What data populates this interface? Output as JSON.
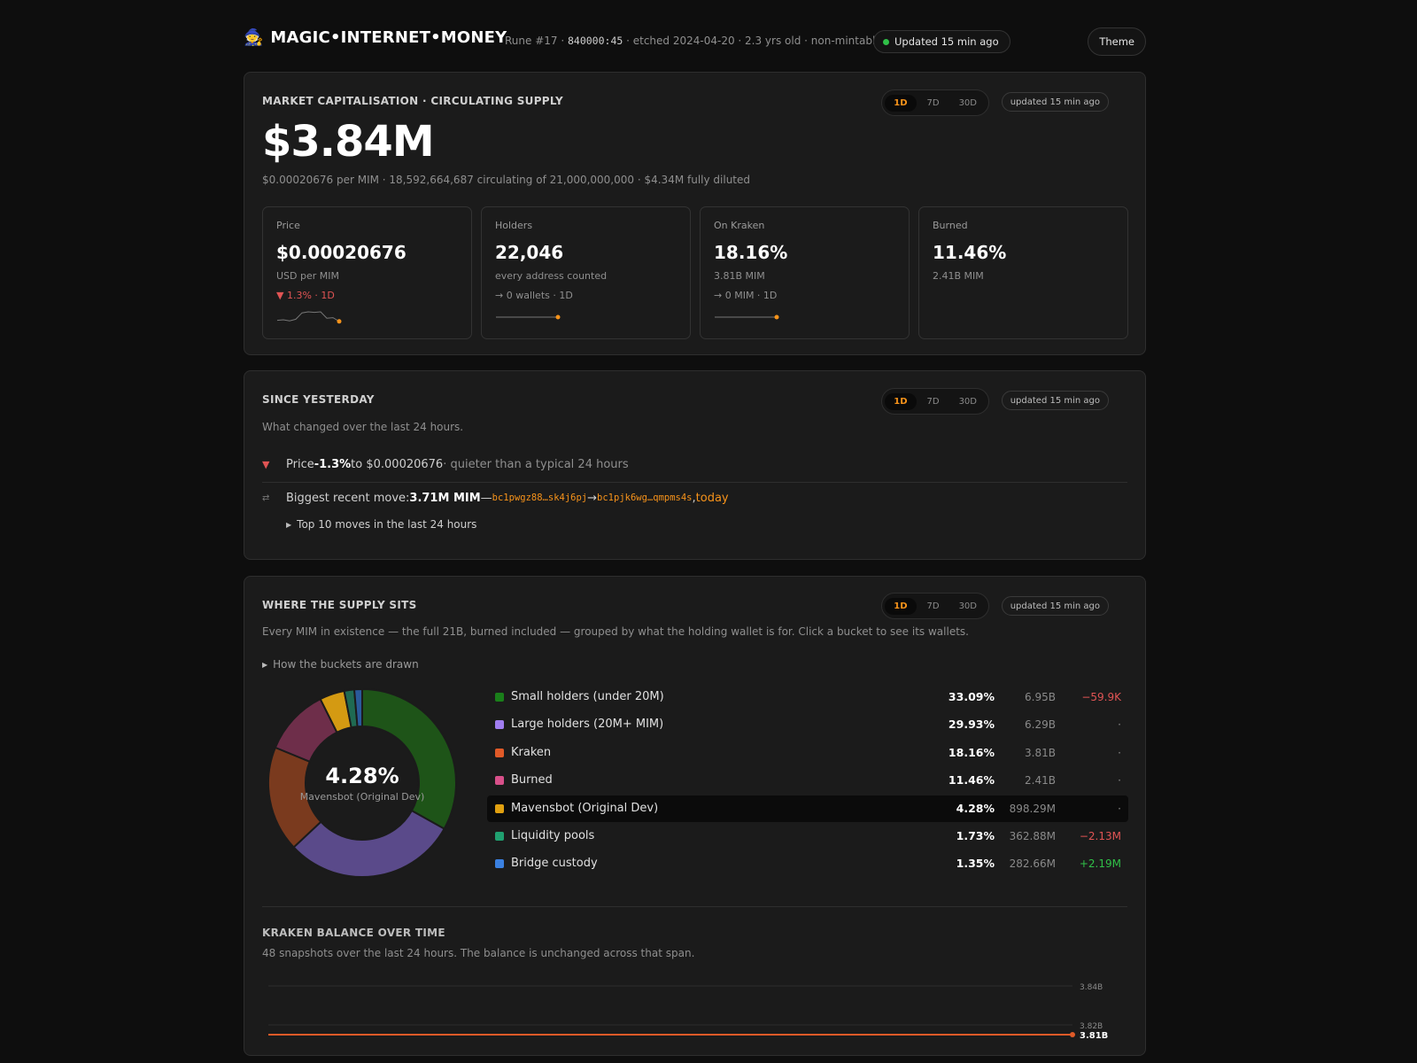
{
  "header": {
    "icon": "wizard-icon",
    "emoji": "🧙",
    "name": "MAGIC•INTERNET•MONEY",
    "rune_prefix": "Rune #17 · ",
    "rune_id": "840000:45",
    "rune_suffix": " · etched 2024-04-20 · 2.3 yrs old · non-mintable",
    "status": "Updated 15 min ago",
    "status_color": "#30c048",
    "theme_label": "Theme"
  },
  "ranges": [
    "1D",
    "7D",
    "30D"
  ],
  "active_range": "1D",
  "market": {
    "title": "MARKET CAPITALISATION · CIRCULATING SUPPLY",
    "updated": "updated 15 min ago",
    "value": "$3.84M",
    "subline": "$0.00020676 per MIM · 18,592,664,687 circulating of 21,000,000,000 · $4.34M fully diluted",
    "stats": [
      {
        "label": "Price",
        "value": "$0.00020676",
        "unit": "USD per MIM",
        "delta": "▼ 1.3% · 1D",
        "spark": [
          0.2,
          0.25,
          0.15,
          0.3,
          0.9,
          1.0,
          0.95,
          1.0,
          0.4,
          0.45,
          0.1
        ]
      },
      {
        "label": "Holders",
        "value": "22,046",
        "unit": "every address counted",
        "delta": "→ 0 wallets · 1D",
        "spark": [
          0.5,
          0.5
        ]
      },
      {
        "label": "On Kraken",
        "value": "18.16%",
        "unit": "3.81B MIM",
        "delta": "→ 0 MIM · 1D",
        "spark": [
          0.5,
          0.5
        ]
      },
      {
        "label": "Burned",
        "value": "11.46%",
        "unit": "2.41B MIM",
        "delta": "",
        "spark": []
      }
    ]
  },
  "since": {
    "title": "SINCE YESTERDAY",
    "updated": "updated 15 min ago",
    "description": "What changed over the last 24 hours.",
    "price_row": {
      "icon": "down-triangle-icon",
      "glyph": "▼",
      "lead": "Price ",
      "delta": "-1.3%",
      "mid": " to $0.00020676",
      "tail": " · quieter than a typical 24 hours"
    },
    "move_row": {
      "icon": "transfer-icon",
      "glyph": "⇄",
      "lead": "Biggest recent move: ",
      "amount": "3.71M MIM",
      "dash": " — ",
      "from": "bc1pwgz88…sk4j6pj",
      "arrow": " → ",
      "to": "bc1pjk6wg…qmpms4s",
      "comma": ", ",
      "when": "today"
    },
    "details_label": "Top 10 moves in the last 24 hours"
  },
  "supply": {
    "title": "WHERE THE SUPPLY SITS",
    "updated": "updated 15 min ago",
    "description": "Every MIM in existence — the full 21B, burned included — grouped by what the holding wallet is for. Click a bucket to see its wallets.",
    "details_label": "How the buckets are drawn",
    "center_pct": "4.28%",
    "center_label": "Mavensbot (Original Dev)",
    "buckets": [
      {
        "name": "Small holders (under 20M)",
        "pct": "33.09%",
        "value": 33.09,
        "amount": "6.95B",
        "change": "−59.9K",
        "trend": "neg",
        "color": "#1a7f1a",
        "fill": "#1e5418"
      },
      {
        "name": "Large holders (20M+ MIM)",
        "pct": "29.93%",
        "value": 29.93,
        "amount": "6.29B",
        "change": "·",
        "trend": "flat",
        "color": "#a07df0",
        "fill": "#5a4a8a"
      },
      {
        "name": "Kraken",
        "pct": "18.16%",
        "value": 18.16,
        "amount": "3.81B",
        "change": "·",
        "trend": "flat",
        "color": "#e05a28",
        "fill": "#7a3a1e"
      },
      {
        "name": "Burned",
        "pct": "11.46%",
        "value": 11.46,
        "amount": "2.41B",
        "change": "·",
        "trend": "flat",
        "color": "#d8508a",
        "fill": "#6e2e4a"
      },
      {
        "name": "Mavensbot (Original Dev)",
        "pct": "4.28%",
        "value": 4.28,
        "amount": "898.29M",
        "change": "·",
        "trend": "flat",
        "color": "#e0a010",
        "fill": "#d49a12",
        "highlight": true
      },
      {
        "name": "Liquidity pools",
        "pct": "1.73%",
        "value": 1.73,
        "amount": "362.88M",
        "change": "−2.13M",
        "trend": "neg",
        "color": "#20a070",
        "fill": "#1f6a52"
      },
      {
        "name": "Bridge custody",
        "pct": "1.35%",
        "value": 1.35,
        "amount": "282.66M",
        "change": "+2.19M",
        "trend": "pos",
        "color": "#3a80e0",
        "fill": "#2a5a9a"
      }
    ]
  },
  "kraken": {
    "title": "KRAKEN BALANCE OVER TIME",
    "description": "48 snapshots over the last 24 hours. The balance is unchanged across that span.",
    "ticks": [
      "3.84B",
      "3.82B"
    ],
    "current": "3.81B",
    "line_color": "#e05a28"
  }
}
